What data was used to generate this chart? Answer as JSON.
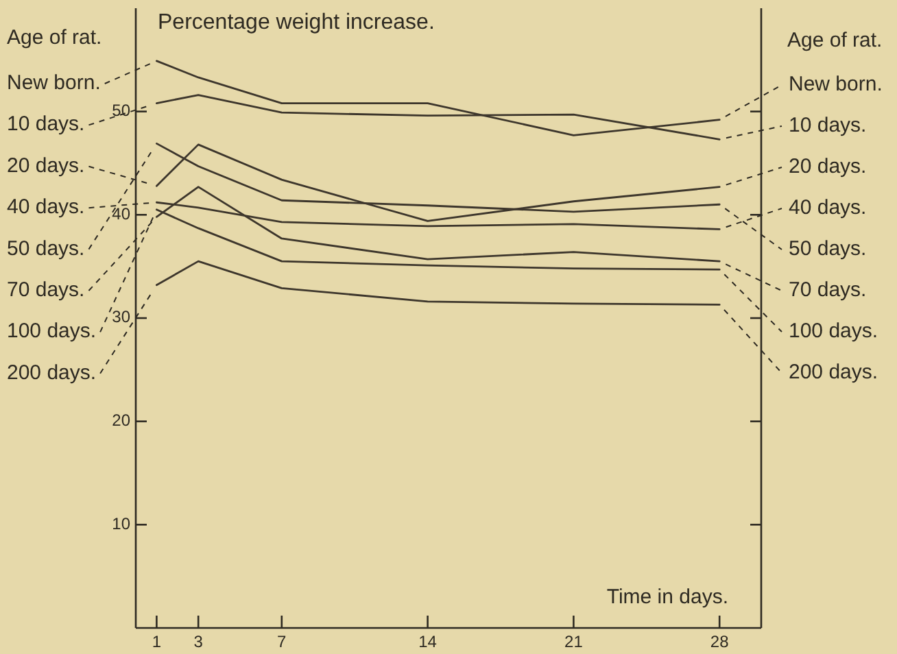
{
  "chart_data": {
    "type": "line",
    "ylabel": "Percentage weight increase.",
    "xlabel": "Time in days.",
    "legend_title": "Age of rat.",
    "legend": "right",
    "x": [
      1,
      3,
      7,
      14,
      21,
      28
    ],
    "xlim": [
      0,
      30
    ],
    "xticks": [
      1,
      3,
      7,
      14,
      21,
      28
    ],
    "ylim": [
      0,
      60
    ],
    "yticks": [
      10,
      20,
      30,
      40,
      50
    ],
    "series": [
      {
        "name": "New born.",
        "color": "#3d362c",
        "values": [
          54.9,
          53.3,
          50.8,
          50.8,
          47.7,
          49.2
        ]
      },
      {
        "name": "10 days.",
        "color": "#3d362c",
        "values": [
          50.8,
          51.6,
          49.9,
          49.6,
          49.7,
          47.3
        ]
      },
      {
        "name": "20 days.",
        "color": "#3d362c",
        "values": [
          42.8,
          46.8,
          43.4,
          39.4,
          41.3,
          42.7
        ]
      },
      {
        "name": "40 days.",
        "color": "#3d362c",
        "values": [
          41.2,
          40.7,
          39.3,
          38.9,
          39.1,
          38.6
        ]
      },
      {
        "name": "50 days.",
        "color": "#3d362c",
        "values": [
          46.9,
          44.7,
          41.4,
          40.9,
          40.3,
          41.0
        ]
      },
      {
        "name": "70 days.",
        "color": "#3d362c",
        "values": [
          39.8,
          42.7,
          37.7,
          35.7,
          36.4,
          35.5
        ]
      },
      {
        "name": "100 days.",
        "color": "#3d362c",
        "values": [
          40.5,
          38.7,
          35.5,
          35.1,
          34.8,
          34.7
        ]
      },
      {
        "name": "200 days.",
        "color": "#3d362c",
        "values": [
          33.2,
          35.5,
          32.9,
          31.6,
          31.4,
          31.3
        ]
      }
    ]
  }
}
